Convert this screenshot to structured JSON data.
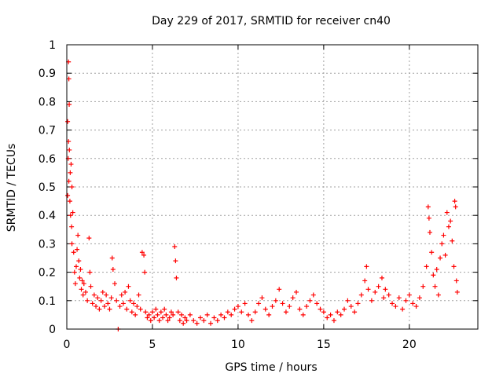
{
  "chart_data": {
    "type": "scatter",
    "title": "Day 229 of 2017, SRMTID for receiver cn40",
    "xlabel": "GPS time / hours",
    "ylabel": "SRMTID / TECUs",
    "xlim": [
      0,
      24
    ],
    "ylim": [
      0,
      1
    ],
    "grid": true,
    "marker": "+",
    "color": "#ff0000",
    "x_ticks": [
      0,
      5,
      10,
      15,
      20
    ],
    "x_tick_labels": [
      "0",
      "5",
      "10",
      "15",
      "20"
    ],
    "y_ticks": [
      0,
      0.1,
      0.2,
      0.3,
      0.4,
      0.5,
      0.6,
      0.7,
      0.8,
      0.9,
      1
    ],
    "y_tick_labels": [
      "0",
      "0.1",
      "0.2",
      "0.3",
      "0.4",
      "0.5",
      "0.6",
      "0.7",
      "0.8",
      "0.9",
      "1"
    ],
    "series": [
      {
        "name": "SRMTID",
        "points": [
          [
            0.05,
            0.73
          ],
          [
            0.08,
            0.6
          ],
          [
            0.1,
            0.94
          ],
          [
            0.12,
            0.88
          ],
          [
            0.14,
            0.79
          ],
          [
            0.1,
            0.66
          ],
          [
            0.15,
            0.63
          ],
          [
            0.2,
            0.55
          ],
          [
            0.25,
            0.58
          ],
          [
            0.3,
            0.5
          ],
          [
            0.18,
            0.45
          ],
          [
            0.22,
            0.4
          ],
          [
            0.28,
            0.36
          ],
          [
            0.05,
            0.47
          ],
          [
            0.12,
            0.52
          ],
          [
            0.35,
            0.41
          ],
          [
            0.3,
            0.3
          ],
          [
            0.4,
            0.27
          ],
          [
            0.45,
            0.2
          ],
          [
            0.5,
            0.16
          ],
          [
            0.55,
            0.22
          ],
          [
            0.6,
            0.28
          ],
          [
            0.65,
            0.33
          ],
          [
            0.7,
            0.24
          ],
          [
            0.75,
            0.18
          ],
          [
            0.8,
            0.21
          ],
          [
            0.85,
            0.14
          ],
          [
            0.9,
            0.17
          ],
          [
            0.95,
            0.12
          ],
          [
            1.0,
            0.16
          ],
          [
            1.1,
            0.13
          ],
          [
            1.2,
            0.1
          ],
          [
            1.3,
            0.32
          ],
          [
            1.35,
            0.2
          ],
          [
            1.4,
            0.15
          ],
          [
            1.5,
            0.09
          ],
          [
            1.6,
            0.12
          ],
          [
            1.7,
            0.08
          ],
          [
            1.8,
            0.11
          ],
          [
            1.9,
            0.07
          ],
          [
            2.0,
            0.1
          ],
          [
            2.1,
            0.13
          ],
          [
            2.2,
            0.08
          ],
          [
            2.3,
            0.12
          ],
          [
            2.4,
            0.09
          ],
          [
            2.5,
            0.07
          ],
          [
            2.6,
            0.11
          ],
          [
            2.65,
            0.25
          ],
          [
            2.7,
            0.21
          ],
          [
            2.8,
            0.16
          ],
          [
            2.9,
            0.1
          ],
          [
            3.0,
            0.0
          ],
          [
            3.1,
            0.08
          ],
          [
            3.2,
            0.12
          ],
          [
            3.3,
            0.09
          ],
          [
            3.4,
            0.13
          ],
          [
            3.5,
            0.07
          ],
          [
            3.6,
            0.15
          ],
          [
            3.7,
            0.1
          ],
          [
            3.8,
            0.06
          ],
          [
            3.9,
            0.09
          ],
          [
            4.0,
            0.05
          ],
          [
            4.1,
            0.08
          ],
          [
            4.2,
            0.12
          ],
          [
            4.3,
            0.07
          ],
          [
            4.4,
            0.27
          ],
          [
            4.5,
            0.26
          ],
          [
            4.55,
            0.2
          ],
          [
            4.6,
            0.06
          ],
          [
            4.7,
            0.04
          ],
          [
            4.8,
            0.05
          ],
          [
            4.9,
            0.03
          ],
          [
            5.0,
            0.06
          ],
          [
            5.1,
            0.04
          ],
          [
            5.2,
            0.07
          ],
          [
            5.3,
            0.05
          ],
          [
            5.4,
            0.03
          ],
          [
            5.5,
            0.06
          ],
          [
            5.6,
            0.04
          ],
          [
            5.7,
            0.07
          ],
          [
            5.8,
            0.05
          ],
          [
            5.9,
            0.03
          ],
          [
            6.0,
            0.04
          ],
          [
            6.1,
            0.06
          ],
          [
            6.2,
            0.05
          ],
          [
            6.3,
            0.29
          ],
          [
            6.35,
            0.24
          ],
          [
            6.4,
            0.18
          ],
          [
            6.5,
            0.06
          ],
          [
            6.6,
            0.03
          ],
          [
            6.7,
            0.05
          ],
          [
            6.8,
            0.02
          ],
          [
            6.9,
            0.04
          ],
          [
            7.0,
            0.03
          ],
          [
            7.2,
            0.05
          ],
          [
            7.4,
            0.03
          ],
          [
            7.6,
            0.02
          ],
          [
            7.8,
            0.04
          ],
          [
            8.0,
            0.03
          ],
          [
            8.2,
            0.05
          ],
          [
            8.4,
            0.02
          ],
          [
            8.6,
            0.04
          ],
          [
            8.8,
            0.03
          ],
          [
            9.0,
            0.05
          ],
          [
            9.2,
            0.04
          ],
          [
            9.4,
            0.06
          ],
          [
            9.6,
            0.05
          ],
          [
            9.8,
            0.07
          ],
          [
            10.0,
            0.08
          ],
          [
            10.2,
            0.06
          ],
          [
            10.4,
            0.09
          ],
          [
            10.6,
            0.05
          ],
          [
            10.8,
            0.03
          ],
          [
            11.0,
            0.06
          ],
          [
            11.2,
            0.09
          ],
          [
            11.4,
            0.11
          ],
          [
            11.6,
            0.07
          ],
          [
            11.8,
            0.05
          ],
          [
            12.0,
            0.08
          ],
          [
            12.2,
            0.1
          ],
          [
            12.4,
            0.14
          ],
          [
            12.6,
            0.09
          ],
          [
            12.8,
            0.06
          ],
          [
            13.0,
            0.08
          ],
          [
            13.2,
            0.11
          ],
          [
            13.4,
            0.13
          ],
          [
            13.6,
            0.07
          ],
          [
            13.8,
            0.05
          ],
          [
            14.0,
            0.08
          ],
          [
            14.2,
            0.1
          ],
          [
            14.4,
            0.12
          ],
          [
            14.6,
            0.09
          ],
          [
            14.8,
            0.07
          ],
          [
            15.0,
            0.06
          ],
          [
            15.2,
            0.04
          ],
          [
            15.4,
            0.05
          ],
          [
            15.6,
            0.03
          ],
          [
            15.8,
            0.06
          ],
          [
            16.0,
            0.05
          ],
          [
            16.2,
            0.07
          ],
          [
            16.4,
            0.1
          ],
          [
            16.6,
            0.08
          ],
          [
            16.8,
            0.06
          ],
          [
            17.0,
            0.09
          ],
          [
            17.2,
            0.12
          ],
          [
            17.4,
            0.17
          ],
          [
            17.5,
            0.22
          ],
          [
            17.6,
            0.14
          ],
          [
            17.8,
            0.1
          ],
          [
            18.0,
            0.13
          ],
          [
            18.2,
            0.15
          ],
          [
            18.4,
            0.18
          ],
          [
            18.5,
            0.11
          ],
          [
            18.6,
            0.14
          ],
          [
            18.8,
            0.12
          ],
          [
            19.0,
            0.09
          ],
          [
            19.2,
            0.08
          ],
          [
            19.4,
            0.11
          ],
          [
            19.6,
            0.07
          ],
          [
            19.8,
            0.1
          ],
          [
            20.0,
            0.12
          ],
          [
            20.2,
            0.09
          ],
          [
            20.4,
            0.08
          ],
          [
            20.6,
            0.11
          ],
          [
            20.8,
            0.15
          ],
          [
            21.0,
            0.22
          ],
          [
            21.1,
            0.43
          ],
          [
            21.15,
            0.39
          ],
          [
            21.2,
            0.34
          ],
          [
            21.3,
            0.27
          ],
          [
            21.4,
            0.19
          ],
          [
            21.5,
            0.15
          ],
          [
            21.6,
            0.21
          ],
          [
            21.7,
            0.12
          ],
          [
            21.8,
            0.25
          ],
          [
            21.9,
            0.3
          ],
          [
            22.0,
            0.33
          ],
          [
            22.1,
            0.26
          ],
          [
            22.2,
            0.41
          ],
          [
            22.3,
            0.36
          ],
          [
            22.4,
            0.38
          ],
          [
            22.5,
            0.31
          ],
          [
            22.6,
            0.22
          ],
          [
            22.65,
            0.45
          ],
          [
            22.7,
            0.43
          ],
          [
            22.75,
            0.17
          ],
          [
            22.8,
            0.13
          ]
        ]
      }
    ]
  }
}
